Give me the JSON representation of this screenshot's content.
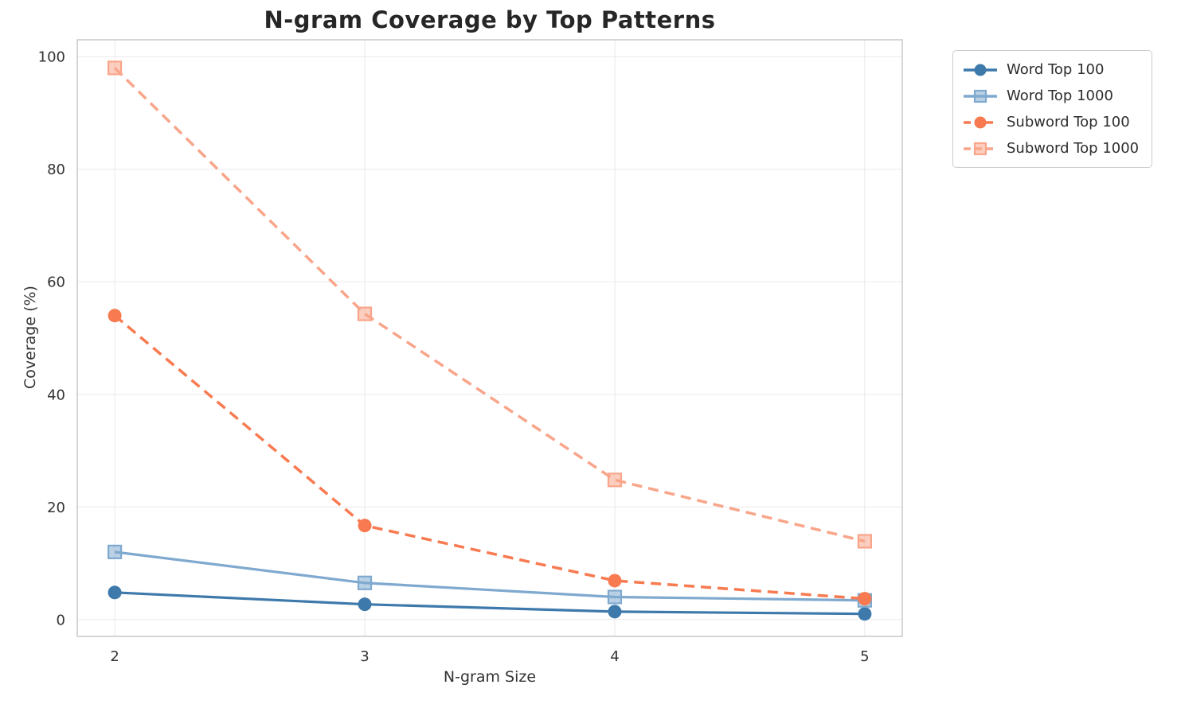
{
  "chart_data": {
    "type": "line",
    "title": "N-gram Coverage by Top Patterns",
    "xlabel": "N-gram Size",
    "ylabel": "Coverage (%)",
    "x": [
      2,
      3,
      4,
      5
    ],
    "x_tick_labels": [
      "2",
      "3",
      "4",
      "5"
    ],
    "y_ticks": [
      0,
      20,
      40,
      60,
      80,
      100
    ],
    "xlim": [
      1.85,
      5.15
    ],
    "ylim": [
      -3,
      103
    ],
    "grid": true,
    "legend_position": "outside-upper-right",
    "series": [
      {
        "name": "Word Top 100",
        "values": [
          4.8,
          2.7,
          1.4,
          1.0
        ],
        "color": "#3D79AB",
        "line_style": "solid",
        "marker": "circle"
      },
      {
        "name": "Word Top 1000",
        "values": [
          12.0,
          6.5,
          4.0,
          3.4
        ],
        "color": "#7FA9CF",
        "line_style": "solid",
        "marker": "square"
      },
      {
        "name": "Subword Top 100",
        "values": [
          54.0,
          16.7,
          6.9,
          3.7
        ],
        "color": "#F87A50",
        "line_style": "dashed",
        "marker": "circle"
      },
      {
        "name": "Subword Top 1000",
        "values": [
          98.0,
          54.3,
          24.8,
          13.9
        ],
        "color": "#F9A58A",
        "line_style": "dashed",
        "marker": "square"
      }
    ]
  }
}
